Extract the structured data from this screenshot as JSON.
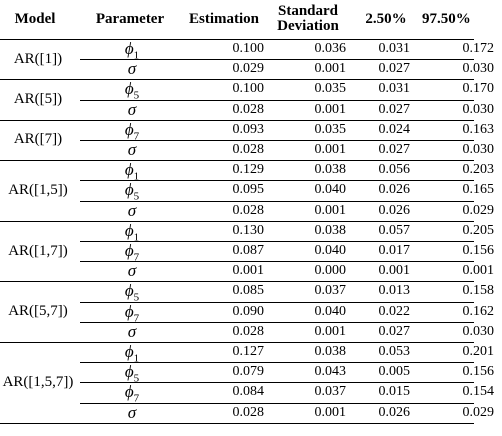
{
  "headers": {
    "model": "Model",
    "parameter": "Parameter",
    "estimation": "Estimation",
    "sd_line1": "Standard",
    "sd_line2": "Deviation",
    "lo": "2.50%",
    "hi": "97.50%"
  },
  "groups": [
    {
      "model": "AR([1])",
      "rows": [
        {
          "symbol": "ϕ",
          "sub": "1",
          "est": "0.100",
          "sd": "0.036",
          "lo": "0.031",
          "hi": "0.172"
        },
        {
          "symbol": "σ",
          "sub": "",
          "est": "0.029",
          "sd": "0.001",
          "lo": "0.027",
          "hi": "0.030"
        }
      ]
    },
    {
      "model": "AR([5])",
      "rows": [
        {
          "symbol": "ϕ",
          "sub": "5",
          "est": "0.100",
          "sd": "0.035",
          "lo": "0.031",
          "hi": "0.170"
        },
        {
          "symbol": "σ",
          "sub": "",
          "est": "0.028",
          "sd": "0.001",
          "lo": "0.027",
          "hi": "0.030"
        }
      ]
    },
    {
      "model": "AR([7])",
      "rows": [
        {
          "symbol": "ϕ",
          "sub": "7",
          "est": "0.093",
          "sd": "0.035",
          "lo": "0.024",
          "hi": "0.163"
        },
        {
          "symbol": "σ",
          "sub": "",
          "est": "0.028",
          "sd": "0.001",
          "lo": "0.027",
          "hi": "0.030"
        }
      ]
    },
    {
      "model": "AR([1,5])",
      "rows": [
        {
          "symbol": "ϕ",
          "sub": "1",
          "est": "0.129",
          "sd": "0.038",
          "lo": "0.056",
          "hi": "0.203"
        },
        {
          "symbol": "ϕ",
          "sub": "5",
          "est": "0.095",
          "sd": "0.040",
          "lo": "0.026",
          "hi": "0.165"
        },
        {
          "symbol": "σ",
          "sub": "",
          "est": "0.028",
          "sd": "0.001",
          "lo": "0.026",
          "hi": "0.029"
        }
      ]
    },
    {
      "model": "AR([1,7])",
      "rows": [
        {
          "symbol": "ϕ",
          "sub": "1",
          "est": "0.130",
          "sd": "0.038",
          "lo": "0.057",
          "hi": "0.205"
        },
        {
          "symbol": "ϕ",
          "sub": "7",
          "est": "0.087",
          "sd": "0.040",
          "lo": "0.017",
          "hi": "0.156"
        },
        {
          "symbol": "σ",
          "sub": "",
          "est": "0.001",
          "sd": "0.000",
          "lo": "0.001",
          "hi": "0.001"
        }
      ]
    },
    {
      "model": "AR([5,7])",
      "rows": [
        {
          "symbol": "ϕ",
          "sub": "5",
          "est": "0.085",
          "sd": "0.037",
          "lo": "0.013",
          "hi": "0.158"
        },
        {
          "symbol": "ϕ",
          "sub": "7",
          "est": "0.090",
          "sd": "0.040",
          "lo": "0.022",
          "hi": "0.162"
        },
        {
          "symbol": "σ",
          "sub": "",
          "est": "0.028",
          "sd": "0.001",
          "lo": "0.027",
          "hi": "0.030"
        }
      ]
    },
    {
      "model": "AR([1,5,7])",
      "rows": [
        {
          "symbol": "ϕ",
          "sub": "1",
          "est": "0.127",
          "sd": "0.038",
          "lo": "0.053",
          "hi": "0.201"
        },
        {
          "symbol": "ϕ",
          "sub": "5",
          "est": "0.079",
          "sd": "0.043",
          "lo": "0.005",
          "hi": "0.156"
        },
        {
          "symbol": "ϕ",
          "sub": "7",
          "est": "0.084",
          "sd": "0.037",
          "lo": "0.015",
          "hi": "0.154"
        },
        {
          "symbol": "σ",
          "sub": "",
          "est": "0.028",
          "sd": "0.001",
          "lo": "0.026",
          "hi": "0.029"
        }
      ]
    }
  ]
}
